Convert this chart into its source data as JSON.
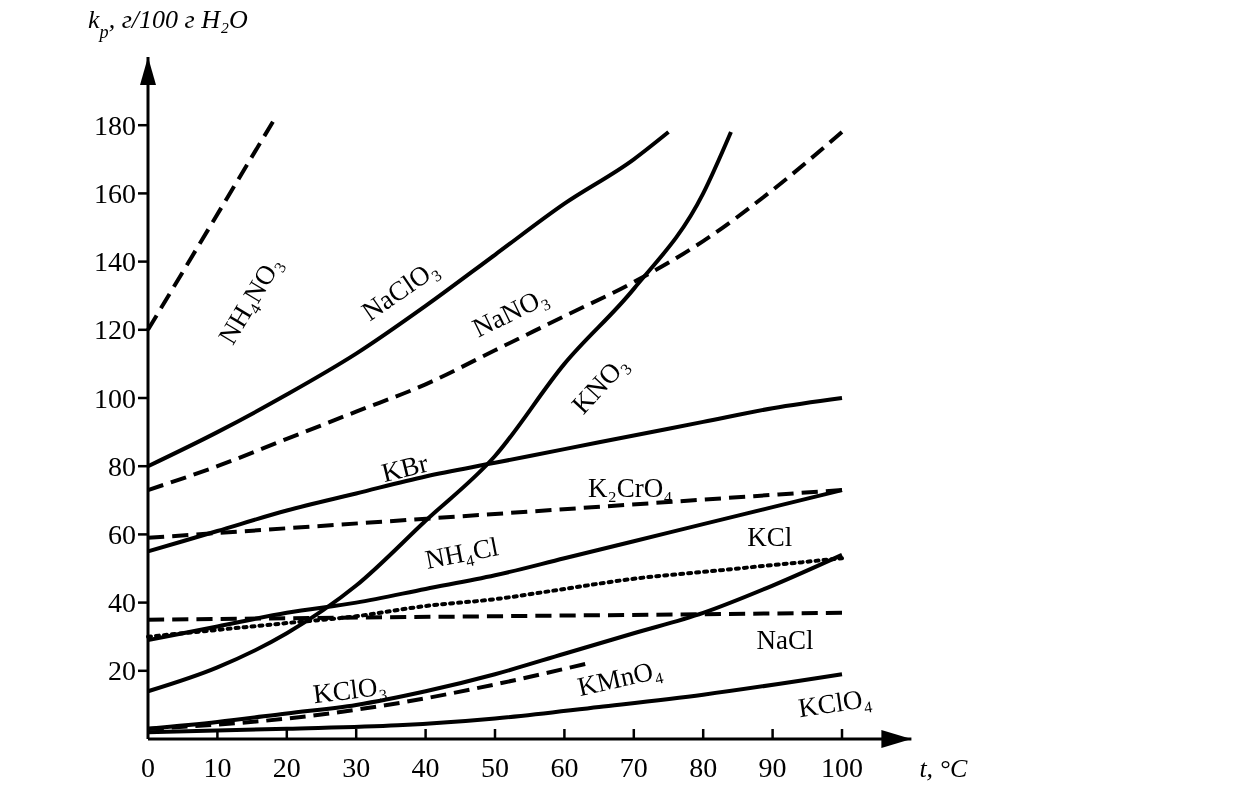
{
  "chart_data": {
    "type": "line",
    "xlabel": "t, °C",
    "ylabel": "k$_{р}$, г/100 г H₂O",
    "xlim": [
      0,
      110
    ],
    "ylim": [
      0,
      200
    ],
    "xticks": [
      0,
      10,
      20,
      30,
      40,
      50,
      60,
      70,
      80,
      90,
      100
    ],
    "yticks": [
      20,
      40,
      60,
      80,
      100,
      120,
      140,
      160,
      180
    ],
    "grid": false,
    "marker": "none",
    "series": [
      {
        "name": "NH₄NO₃",
        "color": "#000000",
        "line_style": "dashed",
        "x": [
          0,
          18
        ],
        "values": [
          120,
          181
        ]
      },
      {
        "name": "NaClO₃",
        "color": "#000000",
        "line_style": "solid",
        "x": [
          0,
          10,
          20,
          30,
          40,
          50,
          60,
          70,
          75
        ],
        "values": [
          80,
          90,
          101,
          113,
          127,
          142,
          157,
          170,
          178
        ]
      },
      {
        "name": "NaNO₃",
        "color": "#000000",
        "line_style": "dashed",
        "x": [
          0,
          10,
          20,
          30,
          40,
          50,
          60,
          70,
          80,
          90,
          100
        ],
        "values": [
          73,
          80,
          88,
          96,
          104,
          114,
          124,
          134,
          146,
          161,
          178
        ]
      },
      {
        "name": "KNO₃",
        "color": "#000000",
        "line_style": "solid",
        "x": [
          0,
          10,
          20,
          30,
          40,
          50,
          60,
          70,
          80,
          84
        ],
        "values": [
          14,
          21,
          31,
          45,
          64,
          83,
          110,
          132,
          160,
          178
        ]
      },
      {
        "name": "KBr",
        "color": "#000000",
        "line_style": "solid",
        "x": [
          0,
          10,
          20,
          30,
          40,
          50,
          60,
          70,
          80,
          90,
          100
        ],
        "values": [
          55,
          61,
          67,
          72,
          77,
          81,
          85,
          89,
          93,
          97,
          100
        ]
      },
      {
        "name": "K₂CrO₄",
        "color": "#000000",
        "line_style": "dashed",
        "x": [
          0,
          50,
          100
        ],
        "values": [
          59,
          66,
          73
        ]
      },
      {
        "name": "NH₄Cl",
        "color": "#000000",
        "line_style": "solid",
        "x": [
          0,
          10,
          20,
          30,
          40,
          50,
          60,
          70,
          80,
          90,
          100
        ],
        "values": [
          29,
          33,
          37,
          40,
          44,
          48,
          53,
          58,
          63,
          68,
          73
        ]
      },
      {
        "name": "KCl",
        "color": "#000000",
        "line_style": "dotted",
        "x": [
          0,
          10,
          20,
          30,
          40,
          50,
          60,
          70,
          80,
          90,
          100
        ],
        "values": [
          30,
          32,
          34,
          36,
          39,
          41,
          44,
          47,
          49,
          51,
          53
        ]
      },
      {
        "name": "NaCl",
        "color": "#000000",
        "line_style": "dashed",
        "x": [
          0,
          100
        ],
        "values": [
          35,
          37
        ]
      },
      {
        "name": "KClO₃",
        "color": "#000000",
        "line_style": "solid",
        "x": [
          0,
          10,
          20,
          30,
          40,
          50,
          60,
          70,
          80,
          90,
          100
        ],
        "values": [
          3,
          5,
          7.5,
          10,
          14,
          19,
          25,
          31,
          37,
          45,
          54
        ]
      },
      {
        "name": "KMnO₄",
        "color": "#000000",
        "line_style": "dashed",
        "x": [
          0,
          20,
          36,
          50,
          63
        ],
        "values": [
          3,
          6,
          10.5,
          16,
          22
        ]
      },
      {
        "name": "KClO₄",
        "color": "#000000",
        "line_style": "solid",
        "x": [
          0,
          20,
          36,
          50,
          65,
          80,
          100
        ],
        "values": [
          2,
          3,
          4,
          6,
          9.4,
          13,
          19
        ]
      }
    ]
  }
}
